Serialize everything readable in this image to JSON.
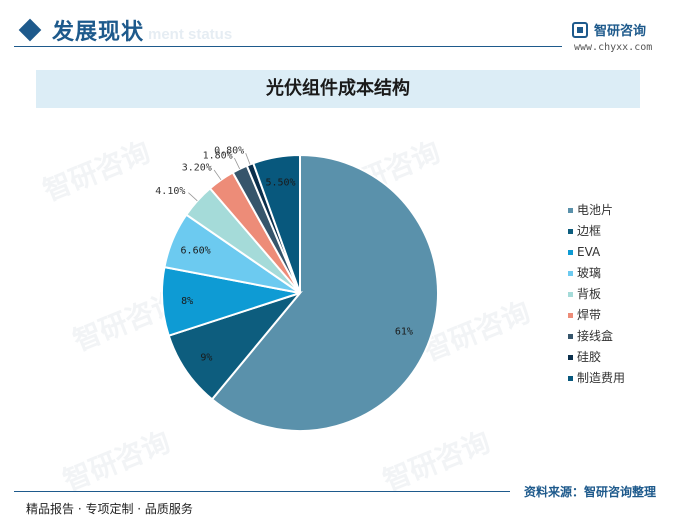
{
  "header": {
    "title": "发展现状",
    "subtitle": "ment status"
  },
  "brand": {
    "name": "智研咨询",
    "url": "www.chyxx.com",
    "color": "#1e5a8c"
  },
  "watermark": "智研咨询",
  "chart_data": {
    "type": "pie",
    "title": "光伏组件成本结构",
    "categories": [
      "电池片",
      "边框",
      "EVA",
      "玻璃",
      "背板",
      "焊带",
      "接线盒",
      "硅胶",
      "制造费用"
    ],
    "values": [
      61,
      9,
      8,
      6.6,
      4.1,
      3.2,
      1.8,
      0.8,
      5.5
    ],
    "labels": [
      "61%",
      "9%",
      "8%",
      "6.60%",
      "4.10%",
      "3.20%",
      "1.80%",
      "0.80%",
      "5.50%"
    ],
    "colors": [
      "#5a91ab",
      "#0d5d7e",
      "#0e9bd4",
      "#6ccaf0",
      "#a5dbd9",
      "#ed8c78",
      "#36556b",
      "#0b2f4c",
      "#08587d"
    ],
    "legend_position": "right"
  },
  "footer": {
    "source": "资料来源：智研咨询整理",
    "tagline": "精品报告 · 专项定制 · 品质服务"
  }
}
